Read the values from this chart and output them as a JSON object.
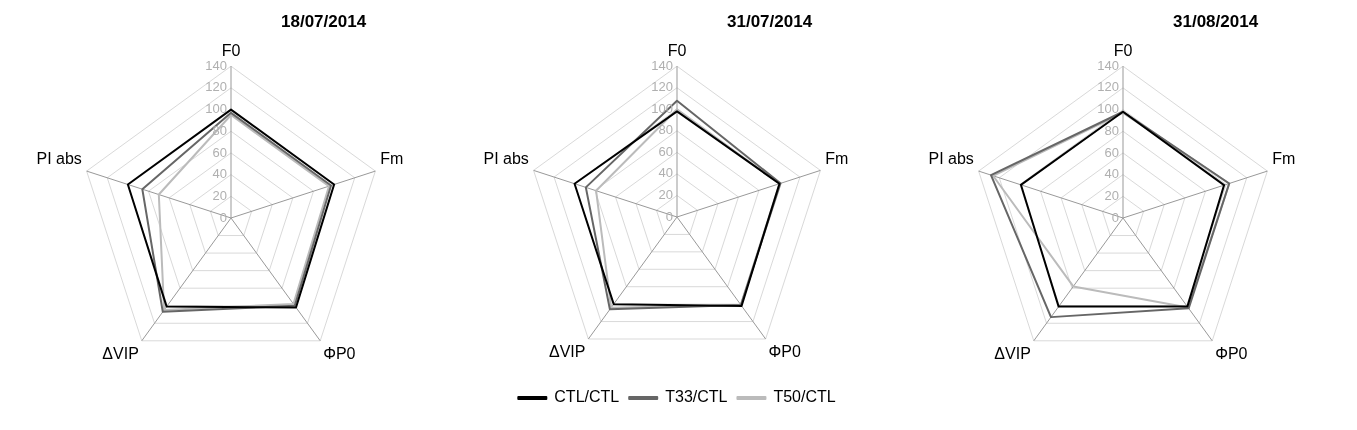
{
  "chart_data": [
    {
      "type": "radar",
      "title": "18/07/2014",
      "categories": [
        "F0",
        "Fm",
        "ΦP0",
        "ΔVIP",
        "PI abs"
      ],
      "ylim": [
        0,
        140
      ],
      "yticks": [
        0,
        20,
        40,
        60,
        80,
        100,
        120,
        140
      ],
      "legend": false,
      "series": [
        {
          "color": "#000000",
          "values": [
            100,
            100,
            102,
            101,
            100
          ]
        },
        {
          "color": "#666666",
          "values": [
            97,
            97,
            100,
            107,
            86
          ]
        },
        {
          "color": "#bbbbbb",
          "values": [
            95,
            95,
            98,
            105,
            70
          ]
        }
      ]
    },
    {
      "type": "radar",
      "title": "31/07/2014",
      "categories": [
        "F0",
        "Fm",
        "ΦP0",
        "ΔVIP",
        "PI abs"
      ],
      "ylim": [
        0,
        140
      ],
      "yticks": [
        0,
        20,
        40,
        60,
        80,
        100,
        120,
        140
      ],
      "legend": "bottom",
      "series": [
        {
          "name": "CTL/CTL",
          "color": "#000000",
          "values": [
            98,
            100,
            102,
            100,
            100
          ]
        },
        {
          "name": "T33/CTL",
          "color": "#666666",
          "values": [
            108,
            101,
            101,
            106,
            89
          ]
        },
        {
          "name": "T50/CTL",
          "color": "#bbbbbb",
          "values": [
            100,
            100,
            101,
            104,
            79
          ]
        }
      ]
    },
    {
      "type": "radar",
      "title": "31/08/2014",
      "categories": [
        "F0",
        "Fm",
        "ΦP0",
        "ΔVIP",
        "PI abs"
      ],
      "ylim": [
        0,
        140
      ],
      "yticks": [
        0,
        20,
        40,
        60,
        80,
        100,
        120,
        140
      ],
      "legend": false,
      "series": [
        {
          "color": "#000000",
          "values": [
            98,
            98,
            101,
            101,
            99
          ]
        },
        {
          "color": "#666666",
          "values": [
            98,
            103,
            103,
            113,
            128
          ]
        },
        {
          "color": "#bbbbbb",
          "values": [
            97,
            103,
            102,
            78,
            126
          ]
        }
      ]
    }
  ]
}
